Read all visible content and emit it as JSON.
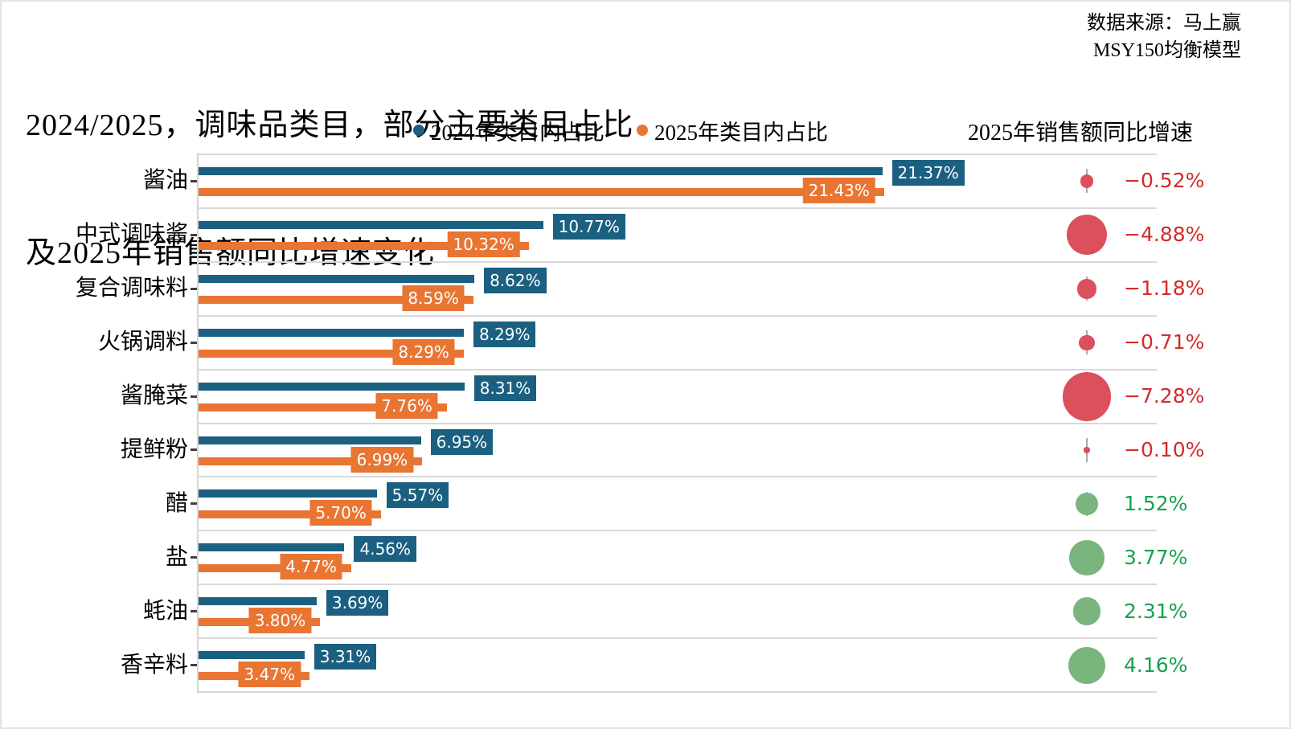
{
  "title": {
    "line1": "2024/2025，调味品类目，部分主要类目占比",
    "line2": "及2025年销售额同比增速变化"
  },
  "source": {
    "line1": "数据来源：马上赢",
    "line2": "MSY150均衡模型"
  },
  "legend": {
    "items": [
      {
        "label": "2024年类目内占比",
        "color": "#1b6080"
      },
      {
        "label": "2025年类目内占比",
        "color": "#e97532"
      }
    ]
  },
  "growth_header": "2025年销售额同比增速",
  "colors": {
    "bar_2024": "#1b6080",
    "bar_2025": "#e97532",
    "bubble_negative": "#dc4f5c",
    "bubble_positive": "#79b57d",
    "text_negative": "#d22b2b",
    "text_positive": "#17a24d",
    "gridline": "#d9d9d9",
    "stem": "#a9a9a9"
  },
  "chart_data": {
    "type": "bar",
    "orientation": "horizontal",
    "title": "2024/2025，调味品类目，部分主要类目占比及2025年销售额同比增速变化",
    "categories": [
      "酱油",
      "中式调味酱",
      "复合调味料",
      "火锅调料",
      "酱腌菜",
      "提鲜粉",
      "醋",
      "盐",
      "蚝油",
      "香辛料"
    ],
    "series": [
      {
        "name": "2024年类目内占比",
        "color": "#1b6080",
        "values": [
          21.37,
          10.77,
          8.62,
          8.29,
          8.31,
          6.95,
          5.57,
          4.56,
          3.69,
          3.31
        ],
        "labels": [
          "21.37%",
          "10.77%",
          "8.62%",
          "8.29%",
          "8.31%",
          "6.95%",
          "5.57%",
          "4.56%",
          "3.69%",
          "3.31%"
        ]
      },
      {
        "name": "2025年类目内占比",
        "color": "#e97532",
        "values": [
          21.43,
          10.32,
          8.59,
          8.29,
          7.76,
          6.99,
          5.7,
          4.77,
          3.8,
          3.47
        ],
        "labels": [
          "21.43%",
          "10.32%",
          "8.59%",
          "8.29%",
          "7.76%",
          "6.99%",
          "5.70%",
          "4.77%",
          "3.80%",
          "3.47%"
        ]
      }
    ],
    "bubble_series": {
      "name": "2025年销售额同比增速",
      "values": [
        -0.52,
        -4.88,
        -1.18,
        -0.71,
        -7.28,
        -0.1,
        1.52,
        3.77,
        2.31,
        4.16
      ],
      "labels": [
        "−0.52%",
        "−4.88%",
        "−1.18%",
        "−0.71%",
        "−7.28%",
        "−0.10%",
        "1.52%",
        "3.77%",
        "2.31%",
        "4.16%"
      ],
      "size_encoding": "radius proportional to sqrt(|value|)",
      "color_rule": "red if negative, green if positive"
    },
    "xlim": [
      0,
      30
    ],
    "grid": "horizontal row separators only",
    "legend_position": "top-center"
  }
}
